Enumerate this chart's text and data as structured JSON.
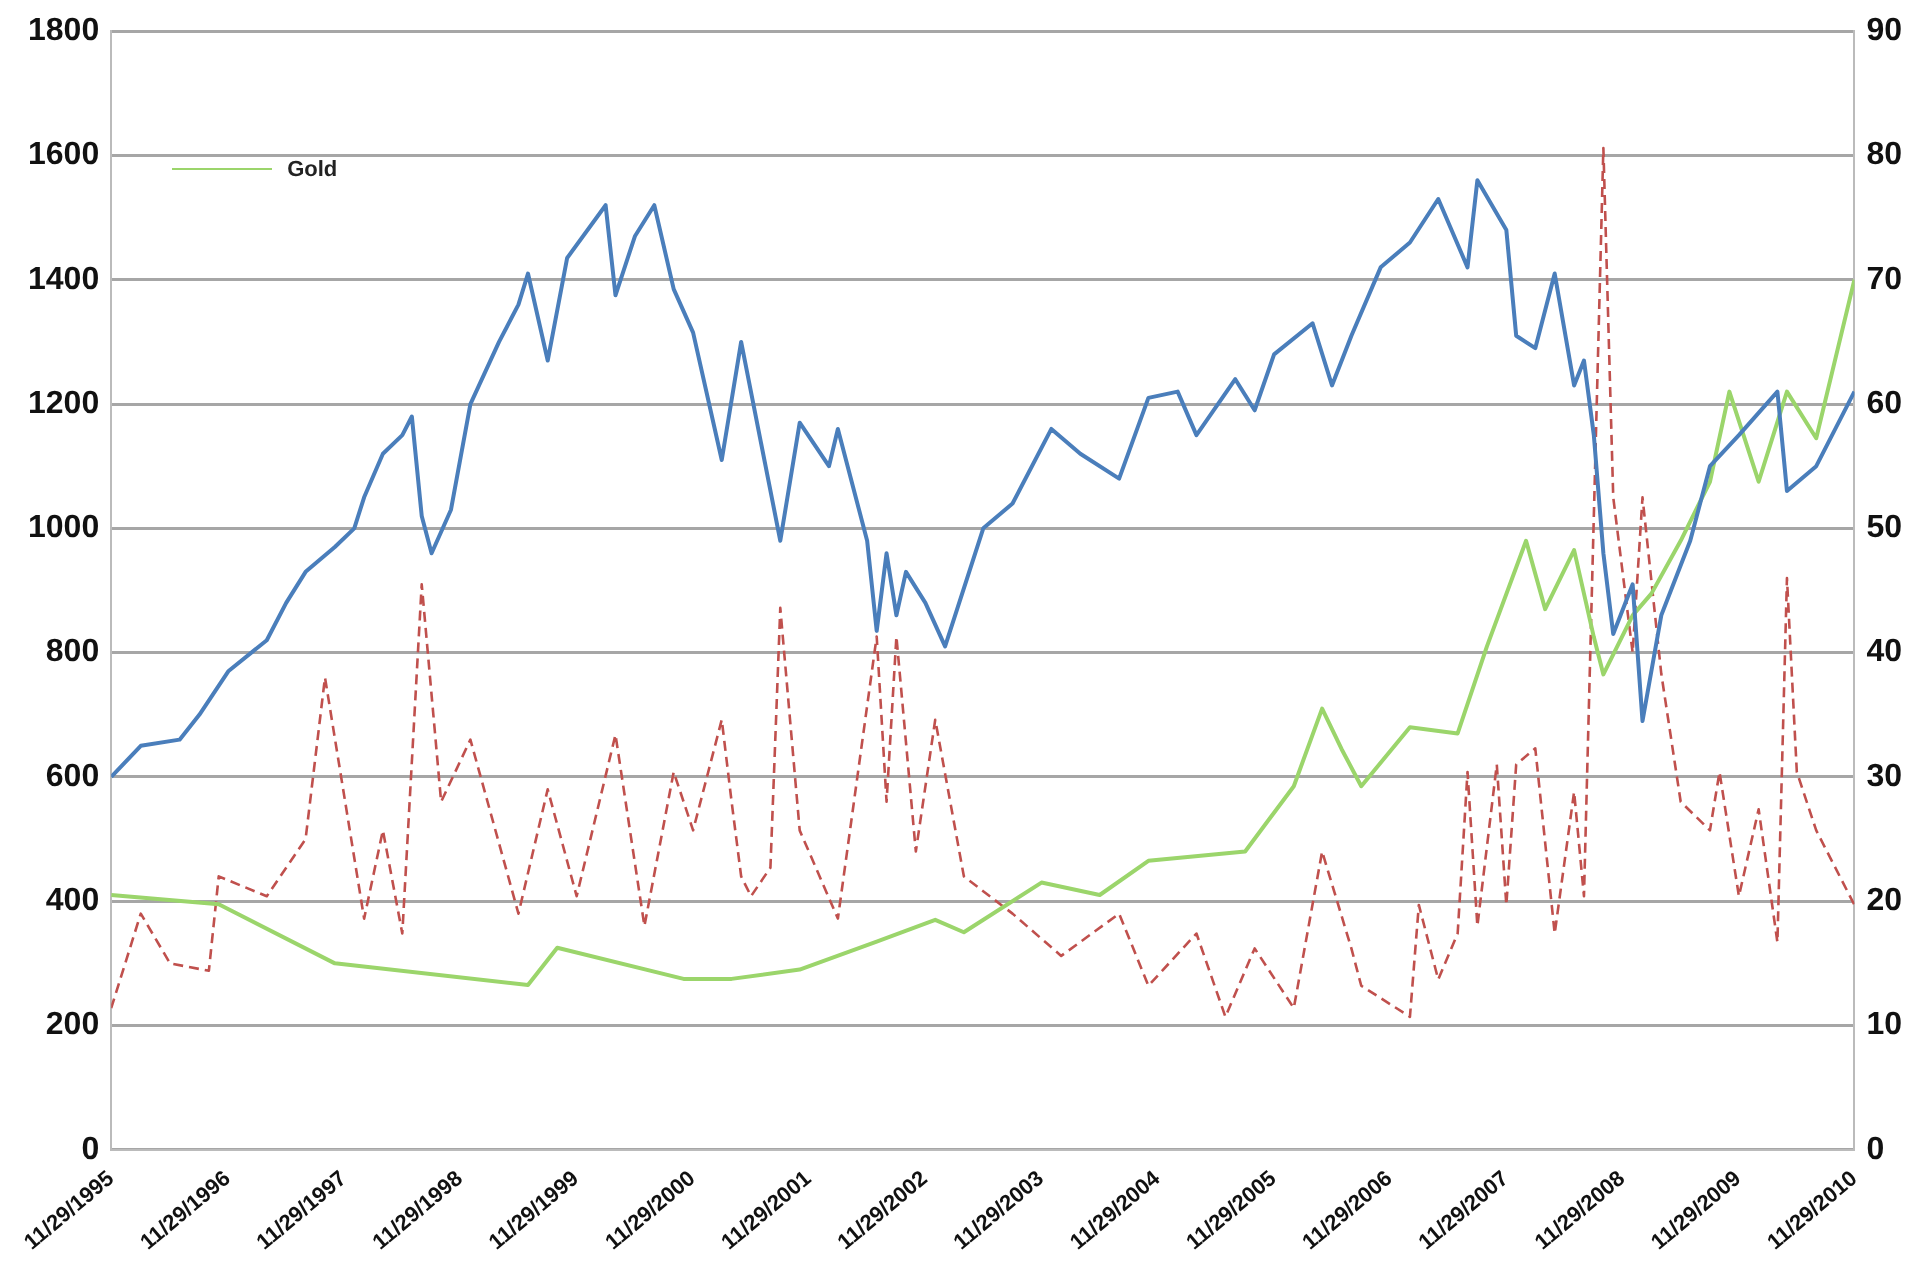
{
  "chart_data": {
    "type": "line",
    "xlim": [
      "1995-11-29",
      "2010-11-29"
    ],
    "xticks": [
      {
        "value": "1995-11-29",
        "label": "11/29/1995"
      },
      {
        "value": "1996-11-29",
        "label": "11/29/1996"
      },
      {
        "value": "1997-11-29",
        "label": "11/29/1997"
      },
      {
        "value": "1998-11-29",
        "label": "11/29/1998"
      },
      {
        "value": "1999-11-29",
        "label": "11/29/1999"
      },
      {
        "value": "2000-11-29",
        "label": "11/29/2000"
      },
      {
        "value": "2001-11-29",
        "label": "11/29/2001"
      },
      {
        "value": "2002-11-29",
        "label": "11/29/2002"
      },
      {
        "value": "2003-11-29",
        "label": "11/29/2003"
      },
      {
        "value": "2004-11-29",
        "label": "11/29/2004"
      },
      {
        "value": "2005-11-29",
        "label": "11/29/2005"
      },
      {
        "value": "2006-11-29",
        "label": "11/29/2006"
      },
      {
        "value": "2007-11-29",
        "label": "11/29/2007"
      },
      {
        "value": "2008-11-29",
        "label": "11/29/2008"
      },
      {
        "value": "2009-11-29",
        "label": "11/29/2009"
      },
      {
        "value": "2010-11-29",
        "label": "11/29/2010"
      }
    ],
    "ylim": [
      0,
      1800
    ],
    "yticks": [
      0,
      200,
      400,
      600,
      800,
      1000,
      1200,
      1400,
      1600,
      1800
    ],
    "y2lim": [
      0,
      90
    ],
    "y2ticks": [
      0,
      10,
      20,
      30,
      40,
      50,
      60,
      70,
      80,
      90
    ],
    "grid": "y",
    "legend": "top left",
    "series": [
      {
        "color": "#4a7ebb",
        "line_style": "solid",
        "x": [
          "1995-11-29",
          "1996-03",
          "1996-07",
          "1996-09",
          "1996-12",
          "1997-04",
          "1997-06",
          "1997-08",
          "1997-11",
          "1998-01",
          "1998-02",
          "1998-04",
          "1998-06",
          "1998-07",
          "1998-08",
          "1998-09",
          "1998-11",
          "1999-01",
          "1999-04",
          "1999-06",
          "1999-07",
          "1999-09",
          "1999-11",
          "2000-03",
          "2000-04",
          "2000-06",
          "2000-08",
          "2000-10",
          "2000-12",
          "2001-03",
          "2001-05",
          "2001-09",
          "2001-11",
          "2002-02",
          "2002-03",
          "2002-06",
          "2002-07",
          "2002-08",
          "2002-09",
          "2002-10",
          "2002-12",
          "2003-02",
          "2003-06",
          "2003-09",
          "2004-01",
          "2004-04",
          "2004-08",
          "2004-11",
          "2005-02",
          "2005-04",
          "2005-08",
          "2005-10",
          "2005-12",
          "2006-04",
          "2006-06",
          "2006-08",
          "2006-11",
          "2007-02",
          "2007-05",
          "2007-08",
          "2007-09",
          "2007-12",
          "2008-01",
          "2008-03",
          "2008-05",
          "2008-07",
          "2008-08",
          "2008-09",
          "2008-10",
          "2008-11",
          "2009-01",
          "2009-02",
          "2009-04",
          "2009-07",
          "2009-09",
          "2009-12",
          "2010-04",
          "2010-05",
          "2010-08",
          "2010-11-29"
        ],
        "values": [
          600,
          650,
          660,
          700,
          770,
          820,
          880,
          930,
          970,
          1000,
          1050,
          1120,
          1150,
          1180,
          1020,
          960,
          1030,
          1200,
          1300,
          1360,
          1410,
          1270,
          1435,
          1520,
          1375,
          1470,
          1520,
          1385,
          1315,
          1110,
          1300,
          980,
          1170,
          1100,
          1160,
          980,
          835,
          960,
          860,
          930,
          880,
          810,
          1000,
          1040,
          1160,
          1120,
          1080,
          1210,
          1220,
          1150,
          1240,
          1190,
          1280,
          1330,
          1230,
          1310,
          1420,
          1460,
          1530,
          1420,
          1560,
          1480,
          1310,
          1290,
          1410,
          1230,
          1270,
          1150,
          960,
          830,
          910,
          690,
          860,
          980,
          1100,
          1150,
          1220,
          1060,
          1100,
          1220
        ]
      },
      {
        "name": "Gold",
        "color": "#9bd56b",
        "line_style": "solid",
        "x": [
          "1995-11-29",
          "1996-11",
          "1997-11",
          "1999-07",
          "1999-10",
          "2000-11",
          "2001-04",
          "2001-11",
          "2002-07",
          "2003-01",
          "2003-04",
          "2003-12",
          "2004-06",
          "2004-11",
          "2005-09",
          "2006-02",
          "2006-05",
          "2006-07",
          "2006-09",
          "2007-02",
          "2007-07",
          "2007-10",
          "2008-02",
          "2008-04",
          "2008-07",
          "2008-09",
          "2008-10",
          "2009-01",
          "2009-03",
          "2009-06",
          "2009-09",
          "2009-11",
          "2010-02",
          "2010-05",
          "2010-08",
          "2010-11-29"
        ],
        "values": [
          410,
          395,
          300,
          265,
          325,
          275,
          275,
          290,
          335,
          370,
          350,
          430,
          410,
          465,
          480,
          585,
          710,
          645,
          585,
          680,
          670,
          810,
          980,
          870,
          965,
          825,
          765,
          860,
          895,
          980,
          1075,
          1220,
          1075,
          1220,
          1145,
          1400
        ]
      },
      {
        "color": "#c0504d",
        "line_style": "dashed",
        "axis": "y2",
        "x": [
          "1995-11-29",
          "1996-03",
          "1996-06",
          "1996-10",
          "1996-11",
          "1997-04",
          "1997-08",
          "1997-10",
          "1998-02",
          "1998-04",
          "1998-06",
          "1998-08",
          "1998-10",
          "1999-01",
          "1999-06",
          "1999-09",
          "1999-12",
          "2000-04",
          "2000-07",
          "2000-10",
          "2000-12",
          "2001-03",
          "2001-04",
          "2001-05",
          "2001-06",
          "2001-08",
          "2001-09",
          "2001-11",
          "2002-03",
          "2002-07",
          "2002-08",
          "2002-09",
          "2002-11",
          "2003-01",
          "2003-04",
          "2003-09",
          "2004-02",
          "2004-08",
          "2004-11",
          "2005-04",
          "2005-07",
          "2005-10",
          "2006-02",
          "2006-05",
          "2006-08",
          "2006-09",
          "2007-02",
          "2007-03",
          "2007-05",
          "2007-07",
          "2007-08",
          "2007-09",
          "2007-11",
          "2007-12",
          "2008-01",
          "2008-03",
          "2008-05",
          "2008-07",
          "2008-08",
          "2008-10",
          "2008-11",
          "2009-01",
          "2009-02",
          "2009-04",
          "2009-06",
          "2009-09",
          "2009-10",
          "2009-12",
          "2010-02",
          "2010-04",
          "2010-05",
          "2010-06",
          "2010-08",
          "2010-11-29"
        ],
        "values": [
          11.4,
          19,
          15,
          14.4,
          22,
          20.4,
          25,
          38,
          18.6,
          25.7,
          17.4,
          45.5,
          28,
          33,
          19,
          29,
          20.4,
          33.4,
          18,
          30.4,
          25.7,
          34.6,
          28,
          22,
          20.4,
          22.7,
          43.6,
          25.7,
          18.6,
          41.3,
          28,
          41.3,
          24,
          34.6,
          22,
          19,
          15.6,
          19,
          13.2,
          17.4,
          10.7,
          16.2,
          11.4,
          24,
          16.2,
          13.2,
          10.7,
          19.7,
          13.7,
          17.4,
          30.4,
          18,
          31,
          19.7,
          31,
          32.3,
          17.4,
          28.8,
          20.4,
          80.6,
          52.5,
          40,
          52.5,
          38.3,
          28,
          25.7,
          30.4,
          20.4,
          27.4,
          16.7,
          46,
          30.4,
          25.7,
          19.7
        ]
      }
    ]
  }
}
